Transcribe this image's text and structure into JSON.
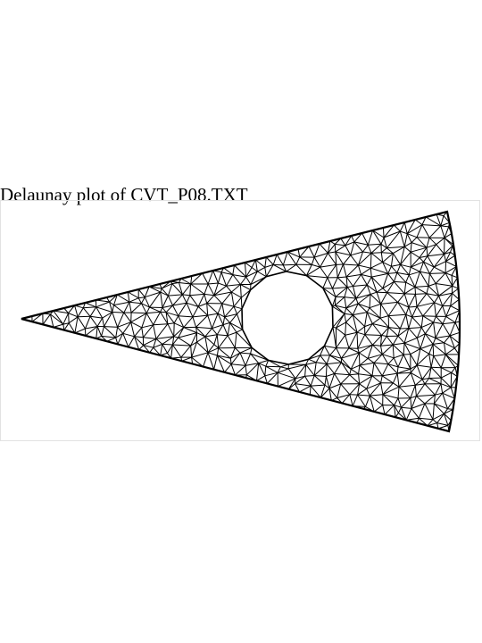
{
  "title": "Delaunay plot of CVT_P08.TXT",
  "colors": {
    "background": "#ffffff",
    "stroke": "#000000",
    "frame": "#e2e2e2"
  }
}
